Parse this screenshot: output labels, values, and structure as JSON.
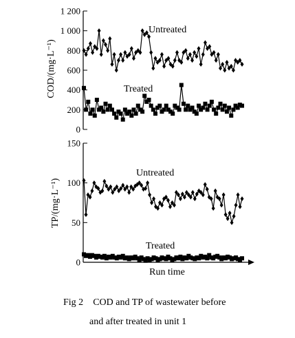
{
  "figure": {
    "number": "Fig 2",
    "caption_line1": "COD and TP of wastewater before",
    "caption_line2": "and after treated in unit 1"
  },
  "chart_data": [
    {
      "type": "line",
      "ylabel": "COD/(mg·L⁻¹)",
      "xlabel": "",
      "ylim": [
        0,
        1200
      ],
      "yticks": [
        0,
        200,
        400,
        600,
        800,
        1000,
        1200
      ],
      "ytick_labels": [
        "0",
        "200",
        "400",
        "600",
        "800",
        "1 000",
        "1 200"
      ],
      "series": [
        {
          "name": "Untreated",
          "marker": "diamond",
          "values": [
            800,
            760,
            820,
            870,
            780,
            840,
            820,
            1000,
            760,
            900,
            860,
            800,
            920,
            660,
            760,
            600,
            700,
            760,
            700,
            780,
            740,
            760,
            820,
            720,
            780,
            800,
            780,
            1000,
            960,
            980,
            940,
            780,
            620,
            720,
            680,
            700,
            760,
            640,
            700,
            720,
            660,
            640,
            700,
            780,
            700,
            680,
            780,
            800,
            720,
            760,
            700,
            780,
            740,
            820,
            660,
            760,
            880,
            820,
            840,
            760,
            780,
            700,
            760,
            620,
            660,
            600,
            680,
            620,
            640,
            600,
            700,
            680,
            700,
            660
          ]
        },
        {
          "name": "Treated",
          "marker": "square",
          "values": [
            420,
            200,
            280,
            160,
            200,
            140,
            300,
            200,
            220,
            180,
            260,
            200,
            240,
            200,
            160,
            120,
            180,
            160,
            100,
            200,
            160,
            180,
            140,
            200,
            160,
            240,
            200,
            180,
            340,
            280,
            300,
            240,
            200,
            160,
            220,
            240,
            180,
            200,
            240,
            200,
            180,
            160,
            240,
            220,
            200,
            450,
            260,
            200,
            240,
            200,
            220,
            180,
            160,
            240,
            200,
            220,
            260,
            200,
            240,
            280,
            200,
            160,
            220,
            260,
            200,
            240,
            180,
            220,
            140,
            200,
            240,
            220,
            250,
            240
          ]
        }
      ]
    },
    {
      "type": "line",
      "ylabel": "TP/(mg·L⁻¹)",
      "xlabel": "Run time",
      "ylim": [
        0,
        150
      ],
      "yticks": [
        0,
        50,
        100,
        150
      ],
      "ytick_labels": [
        "0",
        "50",
        "100",
        "150"
      ],
      "series": [
        {
          "name": "Untreated",
          "marker": "diamond",
          "values": [
            103,
            60,
            85,
            82,
            90,
            100,
            95,
            93,
            88,
            90,
            102,
            96,
            92,
            95,
            88,
            92,
            95,
            90,
            93,
            97,
            92,
            95,
            88,
            95,
            92,
            96,
            98,
            100,
            97,
            92,
            93,
            100,
            85,
            75,
            80,
            70,
            68,
            75,
            72,
            80,
            82,
            78,
            70,
            75,
            72,
            88,
            85,
            80,
            86,
            82,
            88,
            85,
            82,
            88,
            80,
            86,
            90,
            88,
            85,
            98,
            92,
            82,
            80,
            68,
            90,
            82,
            80,
            72,
            85,
            60,
            55,
            62,
            50,
            58,
            72,
            85,
            70,
            80
          ]
        },
        {
          "name": "Treated",
          "marker": "square",
          "values": [
            10,
            8,
            9,
            7,
            9,
            8,
            6,
            8,
            7,
            6,
            8,
            5,
            7,
            6,
            8,
            6,
            5,
            7,
            6,
            8,
            5,
            6,
            4,
            6,
            5,
            7,
            5,
            3,
            6,
            4,
            2,
            5,
            3,
            4,
            6,
            5,
            3,
            4,
            6,
            5,
            4,
            7,
            5,
            3,
            4,
            6,
            5,
            7,
            4,
            6,
            5,
            8,
            6,
            5,
            4,
            6,
            5,
            8,
            6,
            7,
            5,
            9,
            6,
            5,
            7,
            8,
            6,
            4,
            6,
            5,
            7,
            6,
            4,
            5,
            6,
            4,
            3,
            5
          ]
        }
      ]
    }
  ]
}
